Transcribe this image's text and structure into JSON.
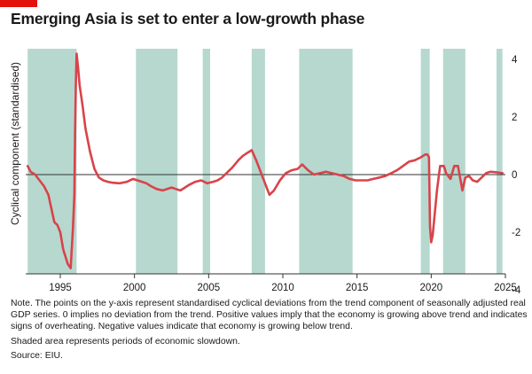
{
  "header": {
    "title": "Emerging Asia is set to enter a low-growth phase"
  },
  "chart_data": {
    "type": "line",
    "title": "Emerging Asia is set to enter a low-growth phase",
    "ylabel": "Cyclical component (standardised)",
    "xlabel": "",
    "xlim": [
      1992.8,
      2025.0
    ],
    "ylim": [
      -4,
      4.3
    ],
    "x_ticks": [
      1995,
      2000,
      2005,
      2010,
      2015,
      2020,
      2025
    ],
    "y_ticks": [
      -4,
      -2,
      0,
      2,
      4
    ],
    "y_tick_labels": [
      "-4",
      "-2",
      "0",
      "2",
      "4"
    ],
    "grid": false,
    "colors": {
      "line": "#d9434a",
      "shading": "#b6d8cf",
      "zero_line": "#333333"
    },
    "slowdown_periods": [
      [
        1992.8,
        1996.1
      ],
      [
        2000.1,
        2002.9
      ],
      [
        2004.6,
        2005.1
      ],
      [
        2007.9,
        2008.8
      ],
      [
        2011.1,
        2014.7
      ],
      [
        2019.3,
        2019.9
      ],
      [
        2020.8,
        2022.3
      ],
      [
        2024.4,
        2024.8
      ]
    ],
    "series": [
      {
        "name": "",
        "x": [
          1992.8,
          1993.0,
          1993.3,
          1993.6,
          1993.9,
          1994.2,
          1994.45,
          1994.6,
          1994.8,
          1995.0,
          1995.2,
          1995.5,
          1995.7,
          1995.85,
          1995.95,
          1996.0,
          1996.05,
          1996.1,
          1996.2,
          1996.3,
          1996.5,
          1996.7,
          1997.0,
          1997.3,
          1997.6,
          1997.9,
          1998.2,
          1998.5,
          1999.0,
          1999.5,
          1999.9,
          2000.2,
          2000.5,
          2000.8,
          2001.1,
          2001.5,
          2001.9,
          2002.2,
          2002.5,
          2002.8,
          2003.1,
          2003.4,
          2003.7,
          2004.1,
          2004.5,
          2004.9,
          2005.3,
          2005.6,
          2005.9,
          2006.2,
          2006.6,
          2007.0,
          2007.3,
          2007.6,
          2007.9,
          2008.2,
          2008.5,
          2008.8,
          2009.1,
          2009.4,
          2009.8,
          2010.2,
          2010.6,
          2011.0,
          2011.3,
          2011.7,
          2012.1,
          2012.5,
          2012.9,
          2013.3,
          2013.7,
          2014.1,
          2014.5,
          2014.9,
          2015.3,
          2015.7,
          2016.1,
          2016.5,
          2016.9,
          2017.3,
          2017.7,
          2018.1,
          2018.5,
          2018.9,
          2019.3,
          2019.6,
          2019.75,
          2019.85,
          2019.92,
          2020.0,
          2020.1,
          2020.25,
          2020.4,
          2020.6,
          2020.85,
          2021.0,
          2021.3,
          2021.55,
          2021.8,
          2022.1,
          2022.3,
          2022.55,
          2022.8,
          2023.1,
          2023.4,
          2023.7,
          2024.0,
          2024.4,
          2024.8
        ],
        "y": [
          0.3,
          0.1,
          0.0,
          -0.2,
          -0.4,
          -0.7,
          -1.3,
          -1.65,
          -1.75,
          -2.0,
          -2.6,
          -3.1,
          -3.25,
          -1.9,
          -0.7,
          1.5,
          3.2,
          4.2,
          3.7,
          3.1,
          2.4,
          1.6,
          0.8,
          0.2,
          -0.1,
          -0.2,
          -0.25,
          -0.28,
          -0.3,
          -0.25,
          -0.15,
          -0.2,
          -0.25,
          -0.3,
          -0.4,
          -0.5,
          -0.55,
          -0.5,
          -0.45,
          -0.5,
          -0.55,
          -0.45,
          -0.35,
          -0.25,
          -0.2,
          -0.3,
          -0.25,
          -0.2,
          -0.1,
          0.05,
          0.25,
          0.5,
          0.65,
          0.75,
          0.85,
          0.5,
          0.1,
          -0.3,
          -0.7,
          -0.55,
          -0.2,
          0.05,
          0.15,
          0.2,
          0.35,
          0.15,
          0.0,
          0.05,
          0.1,
          0.05,
          0.0,
          -0.05,
          -0.15,
          -0.2,
          -0.2,
          -0.2,
          -0.15,
          -0.1,
          -0.05,
          0.05,
          0.15,
          0.3,
          0.45,
          0.5,
          0.6,
          0.7,
          0.7,
          0.6,
          -1.8,
          -2.35,
          -2.1,
          -1.3,
          -0.5,
          0.3,
          0.3,
          0.05,
          -0.15,
          0.3,
          0.3,
          -0.55,
          -0.1,
          -0.05,
          -0.2,
          -0.25,
          -0.1,
          0.05,
          0.1,
          0.08,
          0.05
        ]
      }
    ],
    "annotations": []
  },
  "notes": {
    "note": "Note. The points on the y-axis represent standardised cyclical deviations from the trend component of seasonally adjusted real GDP series. 0 implies no deviation from the trend. Positive values imply that the economy is growing above trend and indicates signs of overheating. Negative values indicate that economy is growing below trend.",
    "shading": "Shaded area represents periods of economic slowdown.",
    "source": "Source: EIU."
  }
}
